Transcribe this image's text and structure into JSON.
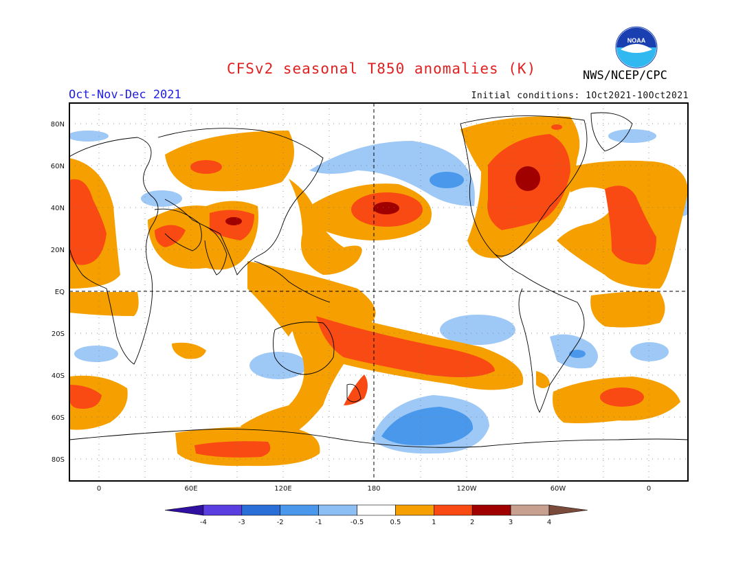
{
  "header": {
    "title": "CFSv2 seasonal T850 anomalies (K)",
    "period": "Oct-Nov-Dec 2021",
    "initial_conditions": "Initial conditions: 1Oct2021-10Oct2021",
    "agency": "NWS/NCEP/CPC",
    "logo_text": "NOAA"
  },
  "colors": {
    "title": "#e02020",
    "period": "#2020e0",
    "warm_1": "#f5a000",
    "warm_2": "#fa4a14",
    "warm_3": "#a00000",
    "cool_1": "#9ec8f5",
    "cool_2": "#4a98ec",
    "continent": "#000000"
  },
  "map": {
    "lat_labels": [
      "80N",
      "60N",
      "40N",
      "20N",
      "EQ",
      "20S",
      "40S",
      "60S",
      "80S"
    ],
    "lon_labels": [
      "0",
      "60E",
      "120E",
      "180",
      "120W",
      "60W",
      "0"
    ]
  },
  "legend": {
    "units": "K",
    "labels": [
      "-4",
      "-3",
      "-2",
      "-1",
      "-0.5",
      "0.5",
      "1",
      "2",
      "3",
      "4"
    ],
    "colors": [
      "#3010a0",
      "#5a3ee0",
      "#2a6fd8",
      "#4a98ec",
      "#8cc0f4",
      "#ffffff",
      "#f5a000",
      "#fa4a14",
      "#a00000",
      "#c8a090",
      "#7a4a3a"
    ]
  }
}
